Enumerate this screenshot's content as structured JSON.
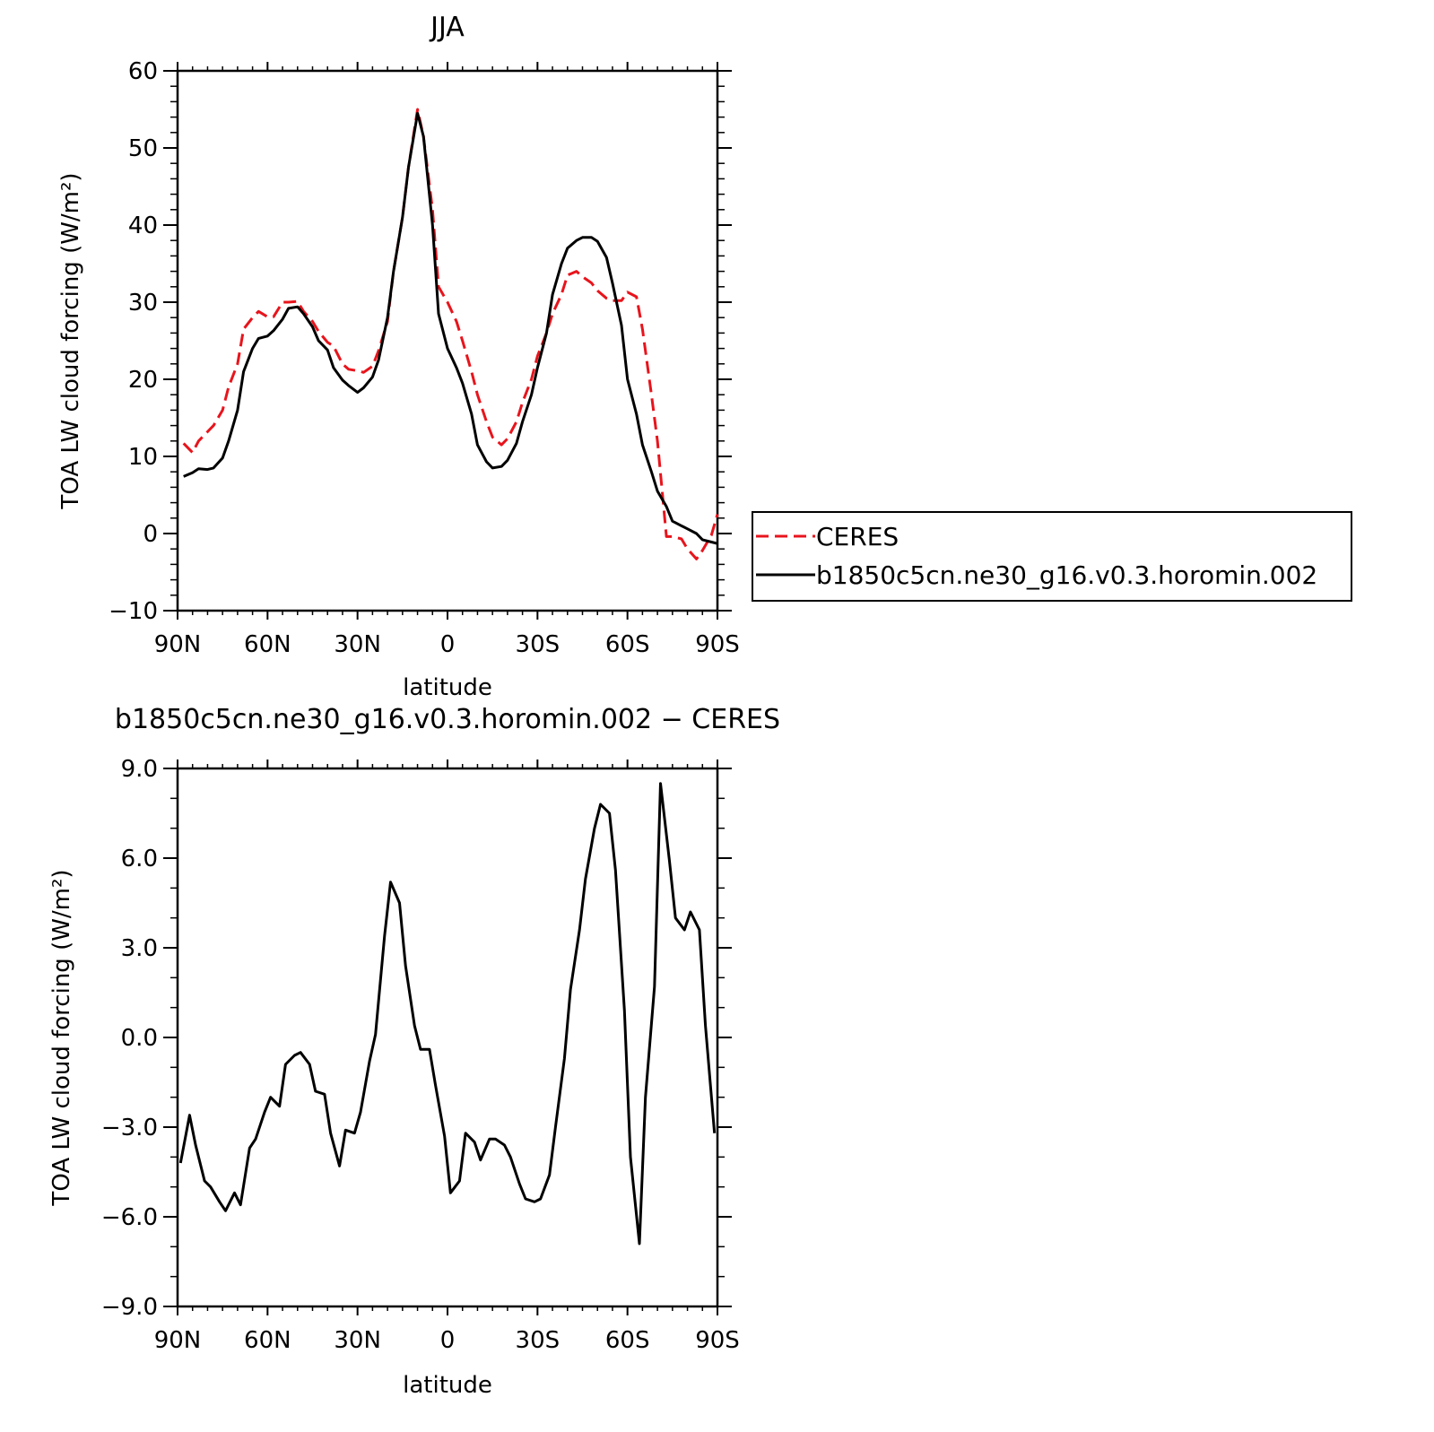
{
  "figure": {
    "top_title": "JJA",
    "bottom_title": "b1850c5cn.ne30_g16.v0.3.horomin.002 − CERES"
  },
  "chart_data": [
    {
      "type": "line",
      "title": "JJA",
      "xlabel": "latitude",
      "ylabel": "TOA LW cloud forcing (W/m²)",
      "ylim": [
        -10,
        60
      ],
      "xlim": [
        90,
        -90
      ],
      "yticks": [
        -10,
        0,
        10,
        20,
        30,
        40,
        50,
        60
      ],
      "ytick_labels": [
        "−10",
        "0",
        "10",
        "20",
        "30",
        "40",
        "50",
        "60"
      ],
      "xticks": [
        90,
        60,
        30,
        0,
        -30,
        -60,
        -90
      ],
      "xtick_labels": [
        "90N",
        "60N",
        "30N",
        "0",
        "30S",
        "60S",
        "90S"
      ],
      "grid": false,
      "legend": "right, outside",
      "series": [
        {
          "name": "CERES",
          "color": "#e8141c",
          "style": "dashed",
          "x": [
            88,
            85,
            83,
            80,
            78,
            75,
            73,
            70,
            68,
            65,
            63,
            60,
            58,
            55,
            53,
            50,
            48,
            45,
            43,
            40,
            38,
            35,
            33,
            30,
            28,
            25,
            23,
            20,
            18,
            15,
            13,
            10,
            8,
            5,
            3,
            0,
            -3,
            -5,
            -8,
            -10,
            -13,
            -15,
            -18,
            -20,
            -23,
            -25,
            -28,
            -30,
            -33,
            -35,
            -38,
            -40,
            -43,
            -45,
            -48,
            -50,
            -53,
            -55,
            -58,
            -60,
            -63,
            -65,
            -68,
            -70,
            -73,
            -75,
            -78,
            -80,
            -83,
            -85,
            -88,
            -90
          ],
          "y": [
            11.7,
            10.5,
            12,
            13.2,
            14,
            16,
            19,
            22,
            26.5,
            28,
            28.8,
            28.1,
            28.1,
            30,
            30,
            30.1,
            28.8,
            27.5,
            26.2,
            24.8,
            24.3,
            22.0,
            21.3,
            21.1,
            20.9,
            21.7,
            23.7,
            27.5,
            34,
            41,
            47.5,
            55,
            51.5,
            42,
            32,
            30,
            27.5,
            25,
            21,
            18,
            14.5,
            12.5,
            11.5,
            12.3,
            14.5,
            17,
            20,
            23,
            26,
            28.5,
            31,
            33.5,
            34,
            33.3,
            32.5,
            31.5,
            30.5,
            30.2,
            30.2,
            31.3,
            30.7,
            26.5,
            18,
            12,
            -0.4,
            -0.4,
            -0.7,
            -2,
            -3.3,
            -2.2,
            -0.2,
            2.5
          ]
        },
        {
          "name": "b1850c5cn.ne30_g16.v0.3.horomin.002",
          "color": "#000000",
          "style": "solid",
          "x": [
            88,
            85,
            83,
            80,
            78,
            75,
            73,
            70,
            68,
            65,
            63,
            60,
            58,
            55,
            53,
            50,
            48,
            45,
            43,
            40,
            38,
            35,
            33,
            30,
            28,
            25,
            23,
            20,
            18,
            15,
            13,
            10,
            8,
            5,
            3,
            0,
            -3,
            -5,
            -8,
            -10,
            -13,
            -15,
            -18,
            -20,
            -23,
            -25,
            -28,
            -30,
            -33,
            -35,
            -38,
            -40,
            -43,
            -45,
            -48,
            -50,
            -53,
            -55,
            -58,
            -60,
            -63,
            -65,
            -68,
            -70,
            -73,
            -75,
            -78,
            -80,
            -83,
            -85,
            -88,
            -90
          ],
          "y": [
            7.4,
            7.9,
            8.4,
            8.3,
            8.5,
            9.8,
            12,
            16,
            21,
            24,
            25.3,
            25.6,
            26.3,
            27.8,
            29.2,
            29.4,
            28.5,
            26.8,
            25,
            23.8,
            21.5,
            19.9,
            19.2,
            18.3,
            18.9,
            20.3,
            22.5,
            28,
            34,
            41,
            47.5,
            54.5,
            51.5,
            40,
            28.5,
            24,
            21.5,
            19.5,
            15.5,
            11.5,
            9.3,
            8.5,
            8.7,
            9.5,
            11.7,
            14.5,
            18,
            21.5,
            26,
            31,
            35,
            37,
            38,
            38.4,
            38.4,
            37.9,
            35.8,
            32.5,
            27,
            20,
            15.5,
            11.5,
            8,
            5.5,
            3.5,
            1.6,
            1,
            0.6,
            0,
            -0.8,
            -1.1,
            -1.3
          ]
        }
      ]
    },
    {
      "type": "line",
      "title": "b1850c5cn.ne30_g16.v0.3.horomin.002 − CERES",
      "xlabel": "latitude",
      "ylabel": "TOA LW cloud forcing (W/m²)",
      "ylim": [
        -9,
        9
      ],
      "xlim": [
        90,
        -90
      ],
      "yticks": [
        -9,
        -6,
        -3,
        0,
        3,
        6,
        9
      ],
      "ytick_labels": [
        "−9.0",
        "−6.0",
        "−3.0",
        "0.0",
        "3.0",
        "6.0",
        "9.0"
      ],
      "xticks": [
        90,
        60,
        30,
        0,
        -30,
        -60,
        -90
      ],
      "xtick_labels": [
        "90N",
        "60N",
        "30N",
        "0",
        "30S",
        "60S",
        "90S"
      ],
      "grid": false,
      "series": [
        {
          "color": "#000000",
          "style": "solid",
          "x": [
            89,
            86,
            84,
            81,
            79,
            76,
            74,
            71,
            69,
            66,
            64,
            61,
            59,
            56,
            54,
            51,
            49,
            46,
            44,
            41,
            39,
            36,
            34,
            31,
            29,
            26,
            24,
            21,
            19,
            16,
            14,
            11,
            9,
            6,
            4,
            1,
            -1,
            -4,
            -6,
            -9,
            -11,
            -14,
            -16,
            -19,
            -21,
            -24,
            -26,
            -29,
            -31,
            -34,
            -36,
            -39,
            -41,
            -44,
            -46,
            -49,
            -51,
            -54,
            -56,
            -59,
            -61,
            -64,
            -66,
            -69,
            -71,
            -74,
            -76,
            -79,
            -81,
            -84,
            -86,
            -89
          ],
          "y": [
            -4.2,
            -2.6,
            -3.6,
            -4.8,
            -5.0,
            -5.5,
            -5.8,
            -5.2,
            -5.6,
            -3.7,
            -3.4,
            -2.5,
            -2.0,
            -2.3,
            -0.9,
            -0.6,
            -0.5,
            -0.9,
            -1.8,
            -1.9,
            -3.2,
            -4.3,
            -3.1,
            -3.2,
            -2.5,
            -0.8,
            0.1,
            3.4,
            5.2,
            4.5,
            2.4,
            0.4,
            -0.4,
            -0.4,
            -1.6,
            -3.3,
            -5.2,
            -4.8,
            -3.2,
            -3.5,
            -4.1,
            -3.4,
            -3.4,
            -3.6,
            -4.0,
            -4.9,
            -5.4,
            -5.5,
            -5.4,
            -4.6,
            -3.0,
            -0.7,
            1.6,
            3.6,
            5.3,
            7.0,
            7.8,
            7.5,
            5.6,
            0.9,
            -4.0,
            -6.9,
            -2.0,
            1.7,
            8.5,
            5.9,
            4.0,
            3.6,
            4.2,
            3.6,
            0.4,
            -3.2
          ]
        }
      ]
    }
  ]
}
